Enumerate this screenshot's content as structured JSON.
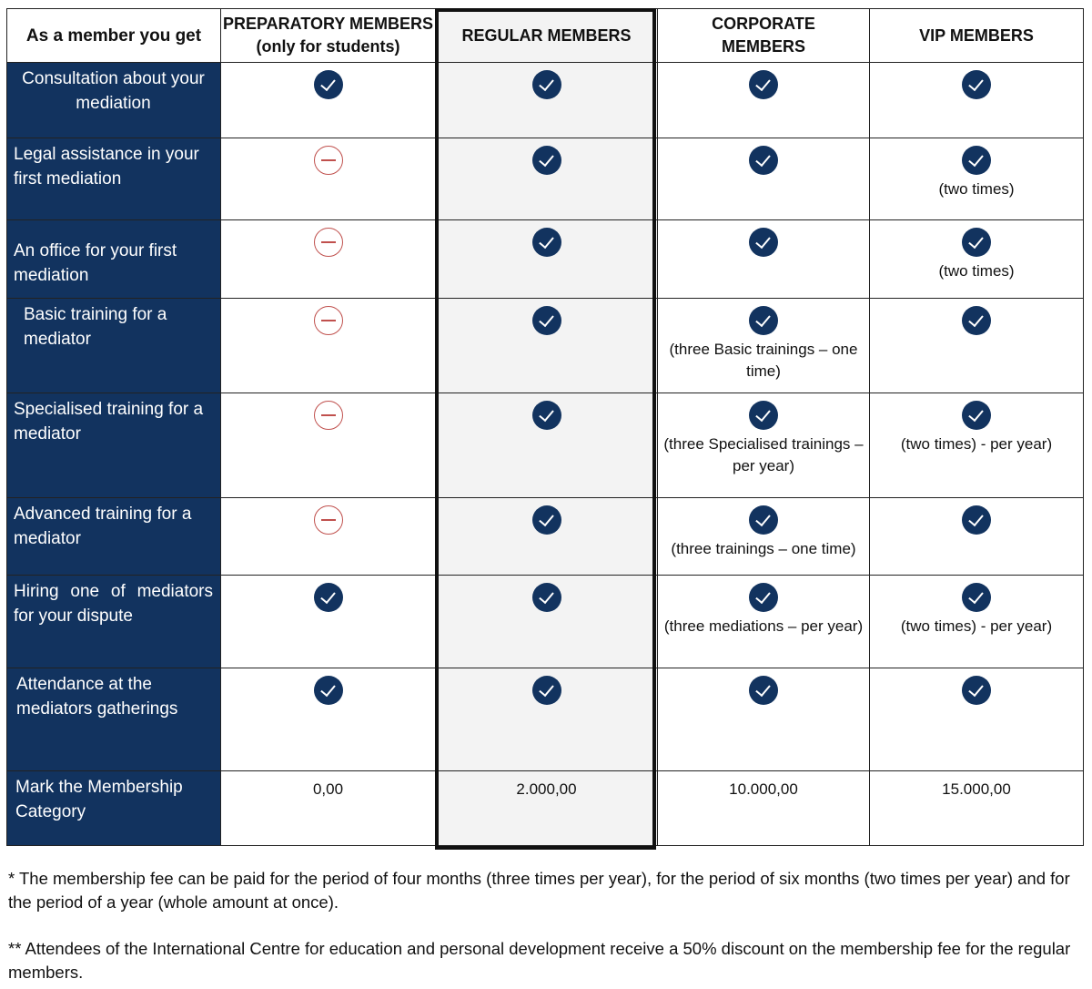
{
  "headers": [
    "As a member you get",
    "PREPARATORY MEMBERS (only for students)",
    "REGULAR MEMBERS",
    "CORPORATE MEMBERS",
    "VIP MEMBERS"
  ],
  "rows": [
    {
      "label": "Consultation about your mediation",
      "cells": [
        {
          "status": "yes"
        },
        {
          "status": "yes"
        },
        {
          "status": "yes"
        },
        {
          "status": "yes"
        }
      ]
    },
    {
      "label": "Legal assistance in your first mediation",
      "cells": [
        {
          "status": "no"
        },
        {
          "status": "yes"
        },
        {
          "status": "yes"
        },
        {
          "status": "yes",
          "note": "(two times)"
        }
      ]
    },
    {
      "label": "An office for your first mediation",
      "cells": [
        {
          "status": "no"
        },
        {
          "status": "yes"
        },
        {
          "status": "yes"
        },
        {
          "status": "yes",
          "note": "(two times)"
        }
      ]
    },
    {
      "label": "Basic training for a mediator",
      "cells": [
        {
          "status": "no"
        },
        {
          "status": "yes"
        },
        {
          "status": "yes",
          "note": "(three Basic trainings – one time)"
        },
        {
          "status": "yes"
        }
      ]
    },
    {
      "label": "Specialised training for a mediator",
      "cells": [
        {
          "status": "no"
        },
        {
          "status": "yes"
        },
        {
          "status": "yes",
          "note": "(three Specialised trainings – per year)"
        },
        {
          "status": "yes",
          "note": "(two times) - per year)"
        }
      ]
    },
    {
      "label": "Advanced training for a mediator",
      "cells": [
        {
          "status": "no"
        },
        {
          "status": "yes"
        },
        {
          "status": "yes",
          "note": "(three trainings – one time)"
        },
        {
          "status": "yes"
        }
      ]
    },
    {
      "label": "Hiring one of mediators for your dispute",
      "cells": [
        {
          "status": "yes"
        },
        {
          "status": "yes"
        },
        {
          "status": "yes",
          "note": "(three mediations – per year)"
        },
        {
          "status": "yes",
          "note": "(two times) - per year)"
        }
      ]
    },
    {
      "label": "Attendance at the mediators gatherings",
      "cells": [
        {
          "status": "yes"
        },
        {
          "status": "yes"
        },
        {
          "status": "yes"
        },
        {
          "status": "yes"
        }
      ]
    }
  ],
  "fee_row": {
    "label": "Mark the Membership Category",
    "values": [
      "0,00",
      "2.000,00",
      "10.000,00",
      "15.000,00"
    ]
  },
  "footnotes": [
    "* The membership fee can be paid for the period of four months (three times per year), for the period of six months (two times per year) and for the period of a year (whole amount at once).",
    "** Attendees of the International Centre for education and personal development  receive a 50% discount on the membership fee for the regular members."
  ],
  "colors": {
    "navy": "#12335f",
    "no": "#c0504d"
  }
}
